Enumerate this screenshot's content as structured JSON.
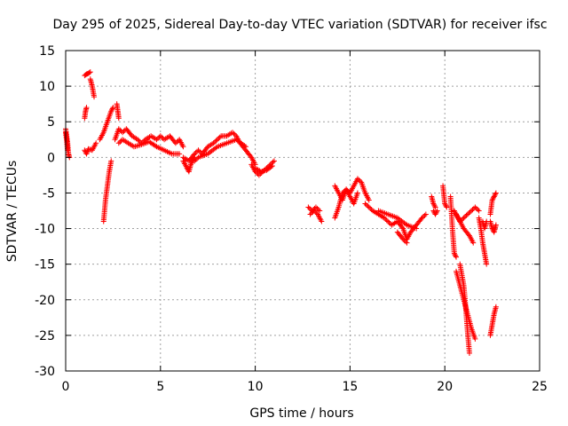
{
  "chart_data": {
    "type": "scatter",
    "title": "Day 295 of 2025, Sidereal Day-to-day VTEC variation (SDTVAR) for receiver ifsc",
    "xlabel": "GPS time / hours",
    "ylabel": "SDTVAR / TECUs",
    "xlim": [
      0,
      25
    ],
    "ylim": [
      -30,
      15
    ],
    "xticks": [
      0,
      5,
      10,
      15,
      20,
      25
    ],
    "yticks": [
      -30,
      -25,
      -20,
      -15,
      -10,
      -5,
      0,
      5,
      10,
      15
    ],
    "grid": true,
    "marker": "+",
    "series": [
      {
        "name": "SDTVAR",
        "color": "#ff0000",
        "segments": [
          {
            "x": [
              0.0,
              0.05,
              0.1,
              0.15,
              0.2
            ],
            "y": [
              4.0,
              3.0,
              2.0,
              0.5,
              0.0
            ]
          },
          {
            "x": [
              0.0,
              0.05,
              0.1
            ],
            "y": [
              3.5,
              2.5,
              1.0
            ]
          },
          {
            "x": [
              1.0,
              1.05,
              1.1
            ],
            "y": [
              5.5,
              6.5,
              7.0
            ]
          },
          {
            "x": [
              1.0,
              1.1,
              1.2,
              1.3
            ],
            "y": [
              11.5,
              11.7,
              11.8,
              12.0
            ]
          },
          {
            "x": [
              1.3,
              1.4,
              1.5
            ],
            "y": [
              11.0,
              10.0,
              8.5
            ]
          },
          {
            "x": [
              1.0,
              1.1,
              1.2,
              1.4,
              1.6
            ],
            "y": [
              1.0,
              0.5,
              1.2,
              1.0,
              2.0
            ]
          },
          {
            "x": [
              1.8,
              2.0,
              2.2,
              2.4,
              2.5
            ],
            "y": [
              2.5,
              3.5,
              5.0,
              6.5,
              7.0
            ]
          },
          {
            "x": [
              2.0,
              2.1,
              2.2,
              2.3,
              2.4
            ],
            "y": [
              -9.0,
              -6.0,
              -4.0,
              -2.0,
              -0.5
            ]
          },
          {
            "x": [
              2.7,
              2.75,
              2.8
            ],
            "y": [
              7.5,
              6.5,
              5.5
            ]
          },
          {
            "x": [
              2.6,
              2.8,
              3.0,
              3.2,
              3.5,
              3.8,
              4.0,
              4.2,
              4.5,
              4.8,
              5.0,
              5.2,
              5.5,
              5.8,
              6.0,
              6.2
            ],
            "y": [
              2.5,
              4.0,
              3.5,
              4.0,
              3.0,
              2.5,
              2.0,
              2.5,
              3.0,
              2.5,
              3.0,
              2.5,
              3.0,
              2.0,
              2.5,
              1.5
            ]
          },
          {
            "x": [
              2.8,
              3.0,
              3.3,
              3.6,
              4.0,
              4.4,
              4.8,
              5.2,
              5.6,
              6.0
            ],
            "y": [
              2.0,
              2.5,
              2.0,
              1.5,
              1.8,
              2.2,
              1.5,
              1.0,
              0.5,
              0.5
            ]
          },
          {
            "x": [
              6.2,
              6.4,
              6.5,
              6.6,
              6.8
            ],
            "y": [
              -0.5,
              -1.5,
              -2.0,
              -1.0,
              0.0
            ]
          },
          {
            "x": [
              6.2,
              6.5,
              6.8,
              7.0,
              7.2,
              7.5,
              7.8,
              8.0,
              8.2,
              8.5,
              8.8,
              9.0,
              9.2,
              9.5,
              9.8,
              10.0
            ],
            "y": [
              0.0,
              -0.5,
              0.5,
              1.0,
              0.5,
              1.5,
              2.0,
              2.5,
              3.0,
              3.0,
              3.5,
              3.0,
              2.0,
              1.0,
              0.0,
              -1.0
            ]
          },
          {
            "x": [
              6.8,
              7.0,
              7.5,
              8.0,
              8.5,
              9.0,
              9.5
            ],
            "y": [
              -0.5,
              0.0,
              0.5,
              1.5,
              2.0,
              2.5,
              1.5
            ]
          },
          {
            "x": [
              9.8,
              10.0,
              10.2,
              10.4,
              10.6,
              10.8,
              11.0
            ],
            "y": [
              -1.0,
              -2.0,
              -2.5,
              -2.0,
              -1.5,
              -1.0,
              -0.5
            ]
          },
          {
            "x": [
              10.0,
              10.3,
              10.6,
              10.9
            ],
            "y": [
              -1.5,
              -2.0,
              -1.8,
              -1.2
            ]
          },
          {
            "x": [
              12.8,
              13.0,
              13.2,
              13.4
            ],
            "y": [
              -7.0,
              -7.5,
              -7.0,
              -7.5
            ]
          },
          {
            "x": [
              12.9,
              13.1,
              13.3,
              13.5
            ],
            "y": [
              -8.0,
              -7.5,
              -8.0,
              -9.0
            ]
          },
          {
            "x": [
              14.2,
              14.4,
              14.6,
              14.8,
              15.0,
              15.2,
              15.4,
              15.6,
              15.8,
              16.0
            ],
            "y": [
              -8.5,
              -7.0,
              -5.0,
              -4.5,
              -5.0,
              -4.0,
              -3.0,
              -3.5,
              -5.0,
              -6.0
            ]
          },
          {
            "x": [
              14.2,
              14.4,
              14.6,
              14.8,
              15.0,
              15.2,
              15.4
            ],
            "y": [
              -4.0,
              -5.0,
              -6.0,
              -4.5,
              -5.5,
              -6.5,
              -5.0
            ]
          },
          {
            "x": [
              15.8,
              16.0,
              16.2,
              16.5,
              16.8,
              17.0,
              17.2,
              17.5,
              17.8,
              18.0,
              18.2,
              18.5,
              18.8,
              19.0
            ],
            "y": [
              -6.5,
              -7.0,
              -7.5,
              -8.0,
              -8.5,
              -9.0,
              -9.5,
              -9.0,
              -10.0,
              -11.5,
              -10.5,
              -9.5,
              -8.5,
              -8.0
            ]
          },
          {
            "x": [
              16.5,
              17.0,
              17.5,
              18.0,
              18.5
            ],
            "y": [
              -7.5,
              -8.0,
              -8.5,
              -9.5,
              -10.0
            ]
          },
          {
            "x": [
              17.5,
              17.8,
              18.0
            ],
            "y": [
              -10.5,
              -11.5,
              -12.0
            ]
          },
          {
            "x": [
              19.3,
              19.4,
              19.5
            ],
            "y": [
              -5.5,
              -6.5,
              -7.0
            ]
          },
          {
            "x": [
              19.4,
              19.5,
              19.6
            ],
            "y": [
              -7.5,
              -8.0,
              -7.5
            ]
          },
          {
            "x": [
              19.9,
              20.0,
              20.1
            ],
            "y": [
              -4.0,
              -6.5,
              -7.0
            ]
          },
          {
            "x": [
              20.3,
              20.4,
              20.5,
              20.6
            ],
            "y": [
              -5.5,
              -10.0,
              -13.5,
              -14.0
            ]
          },
          {
            "x": [
              20.6,
              20.8,
              21.0,
              21.2,
              21.4,
              21.6
            ],
            "y": [
              -16.0,
              -18.0,
              -20.0,
              -22.0,
              -24.0,
              -25.5
            ]
          },
          {
            "x": [
              20.8,
              21.0,
              21.1,
              21.2,
              21.3
            ],
            "y": [
              -15.0,
              -18.0,
              -21.0,
              -24.5,
              -27.5
            ]
          },
          {
            "x": [
              20.5,
              20.7,
              21.0,
              21.3,
              21.5
            ],
            "y": [
              -7.5,
              -8.5,
              -10.0,
              -11.0,
              -12.0
            ]
          },
          {
            "x": [
              20.6,
              20.8,
              21.0,
              21.2,
              21.4,
              21.6,
              21.8
            ],
            "y": [
              -8.0,
              -9.0,
              -8.5,
              -8.0,
              -7.5,
              -7.0,
              -7.5
            ]
          },
          {
            "x": [
              21.8,
              21.9,
              22.0,
              22.1,
              22.2
            ],
            "y": [
              -8.5,
              -10.0,
              -12.0,
              -13.5,
              -15.0
            ]
          },
          {
            "x": [
              22.0,
              22.1,
              22.2
            ],
            "y": [
              -9.0,
              -10.0,
              -9.0
            ]
          },
          {
            "x": [
              22.4,
              22.5,
              22.6,
              22.7
            ],
            "y": [
              -8.0,
              -6.0,
              -5.5,
              -5.0
            ]
          },
          {
            "x": [
              22.4,
              22.5,
              22.6,
              22.7
            ],
            "y": [
              -9.0,
              -10.0,
              -10.5,
              -9.5
            ]
          },
          {
            "x": [
              22.4,
              22.5,
              22.6,
              22.7
            ],
            "y": [
              -25.0,
              -23.5,
              -22.0,
              -21.0
            ]
          }
        ]
      }
    ]
  }
}
